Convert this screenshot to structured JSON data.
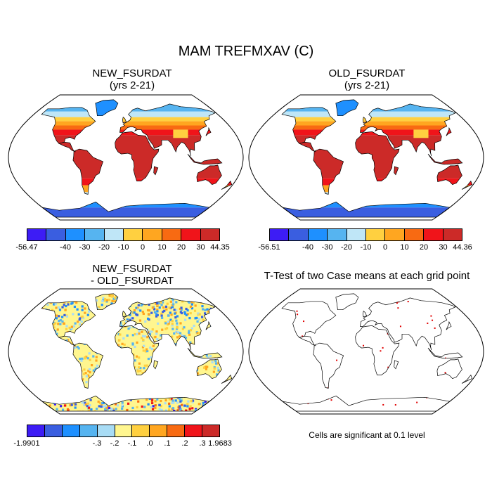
{
  "title": "MAM TREFMXAV (C)",
  "panels": [
    {
      "title_line1": "NEW_FSURDAT",
      "title_line2": "(yrs 2-21)",
      "type": "field"
    },
    {
      "title_line1": "OLD_FSURDAT",
      "title_line2": "(yrs 2-21)",
      "type": "field"
    },
    {
      "title_line1": "NEW_FSURDAT",
      "title_line2": "- OLD_FSURDAT",
      "type": "difference"
    },
    {
      "title_line1": "T-Test of two Case means at each grid point",
      "note": "Cells are significant at 0.1 level",
      "type": "ttest"
    }
  ],
  "colorbars": [
    {
      "labels": [
        "-56.47",
        "-40",
        "-30",
        "-20",
        "-10",
        "0",
        "10",
        "20",
        "30",
        "44.35"
      ],
      "colors": [
        "#3d1cf5",
        "#3a5ee0",
        "#1e90ff",
        "#56b4f0",
        "#bfe6f7",
        "#ffd040",
        "#ffa620",
        "#f86a12",
        "#f0141a",
        "#cc2a28"
      ]
    },
    {
      "labels": [
        "-56.51",
        "-40",
        "-30",
        "-20",
        "-10",
        "0",
        "10",
        "20",
        "30",
        "44.36"
      ],
      "colors": [
        "#3d1cf5",
        "#3a5ee0",
        "#1e90ff",
        "#56b4f0",
        "#bfe6f7",
        "#ffd040",
        "#ffa620",
        "#f86a12",
        "#f0141a",
        "#cc2a28"
      ]
    },
    {
      "labels": [
        "-1.9901",
        "-.3",
        "-.2",
        "-.1",
        ".0",
        ".1",
        ".2",
        ".3",
        "1.9683"
      ],
      "colors": [
        "#3d1cf5",
        "#3a5ee0",
        "#1e90ff",
        "#56b4f0",
        "#a8dcf5",
        "#fff68f",
        "#ffd040",
        "#ffa620",
        "#f86a12",
        "#f0141a",
        "#cc2a28"
      ]
    }
  ]
}
